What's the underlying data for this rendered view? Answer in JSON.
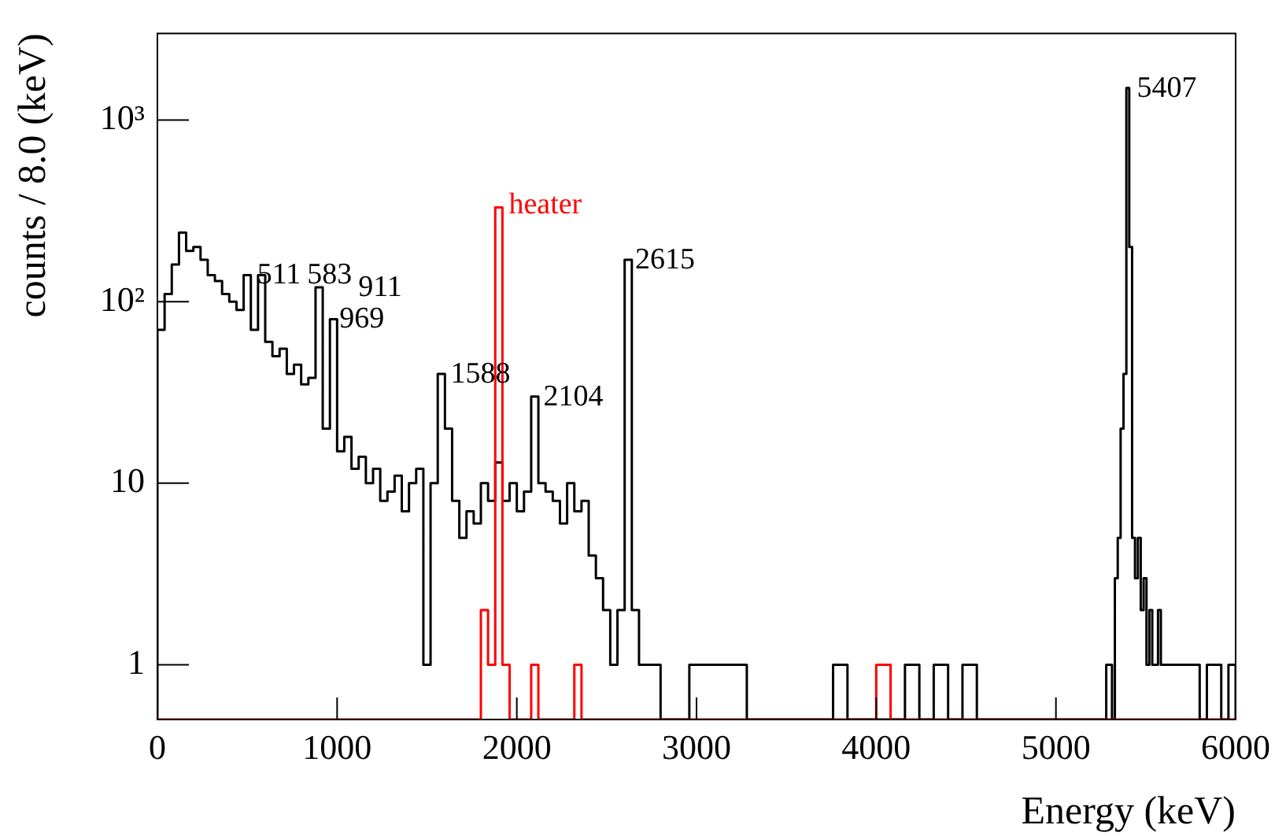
{
  "chart_data": {
    "type": "histogram",
    "xlabel": "Energy (keV)",
    "ylabel": "counts / 8.0 (keV)",
    "bins": [
      0,
      40,
      80,
      120,
      160,
      200,
      240,
      280,
      320,
      360,
      400,
      440,
      480,
      520,
      560,
      600,
      640,
      680,
      720,
      760,
      800,
      840,
      880,
      920,
      960,
      1000,
      1040,
      1080,
      1120,
      1160,
      1200,
      1240,
      1280,
      1320,
      1360,
      1400,
      1440,
      1480,
      1520,
      1560,
      1600,
      1640,
      1680,
      1720,
      1760,
      1800,
      1840,
      1880,
      1920,
      1960,
      2000,
      2040,
      2080,
      2120,
      2160,
      2200,
      2240,
      2280,
      2320,
      2360,
      2400,
      2440,
      2480,
      2520,
      2560,
      2600,
      2640,
      2680,
      2720,
      2760,
      2800,
      2880,
      2960,
      3040,
      3120,
      3200,
      3280,
      3360,
      3440,
      3520,
      3600,
      3680,
      3760,
      3840,
      3920,
      4000,
      4080,
      4160,
      4240,
      4320,
      4400,
      4480,
      4560,
      4640,
      4720,
      4800,
      4880,
      4960,
      5040,
      5120,
      5200,
      5280,
      5296,
      5312,
      5328,
      5344,
      5360,
      5376,
      5392,
      5408,
      5424,
      5440,
      5456,
      5472,
      5488,
      5504,
      5520,
      5536,
      5552,
      5568,
      5584,
      5600,
      5640,
      5680,
      5720,
      5760,
      5800,
      5840,
      5880,
      5920,
      5960,
      6000
    ],
    "series": [
      {
        "color": "#000000",
        "values": [
          70,
          110,
          160,
          240,
          190,
          200,
          170,
          140,
          130,
          110,
          100,
          90,
          140,
          70,
          140,
          60,
          50,
          55,
          40,
          45,
          35,
          38,
          120,
          20,
          80,
          15,
          18,
          12,
          14,
          10,
          12,
          8,
          9,
          11,
          7,
          10,
          12,
          1,
          10,
          40,
          20,
          8,
          5,
          7,
          6,
          10,
          8,
          13,
          8,
          10,
          7,
          9,
          30,
          10,
          9,
          8,
          6,
          10,
          7,
          8,
          4,
          3,
          2,
          1,
          2,
          170,
          2,
          1,
          1,
          1,
          null,
          null,
          1,
          1,
          1,
          1,
          null,
          null,
          null,
          null,
          null,
          null,
          1,
          null,
          null,
          null,
          null,
          1,
          null,
          1,
          null,
          1,
          null,
          null,
          null,
          null,
          null,
          null,
          null,
          null,
          null,
          1,
          1,
          null,
          3,
          5,
          20,
          40,
          1500,
          200,
          5,
          3,
          5,
          2,
          3,
          1,
          2,
          1,
          1,
          2,
          1,
          1,
          1,
          1,
          1,
          1,
          null,
          1,
          1,
          null,
          1
        ]
      },
      {
        "name": "heater",
        "color": "#ff0000",
        "values": [
          null,
          null,
          null,
          null,
          null,
          null,
          null,
          null,
          null,
          null,
          null,
          null,
          null,
          null,
          null,
          null,
          null,
          null,
          null,
          null,
          null,
          null,
          null,
          null,
          null,
          null,
          null,
          null,
          null,
          null,
          null,
          null,
          null,
          null,
          null,
          null,
          null,
          null,
          null,
          null,
          null,
          null,
          null,
          null,
          null,
          2,
          1,
          330,
          1,
          null,
          null,
          null,
          1,
          null,
          null,
          null,
          null,
          null,
          1,
          null,
          null,
          null,
          null,
          null,
          null,
          null,
          null,
          null,
          null,
          null,
          null,
          null,
          null,
          null,
          null,
          null,
          null,
          null,
          null,
          null,
          null,
          null,
          null,
          null,
          null,
          1,
          null,
          null,
          null,
          null,
          null,
          null,
          null,
          null,
          null,
          null,
          null,
          null,
          null,
          null,
          null,
          null,
          null,
          null,
          null,
          null,
          null,
          null,
          null,
          null,
          null,
          null,
          null,
          null,
          null,
          null,
          null,
          null,
          null,
          null,
          null,
          null,
          null,
          null,
          null,
          null,
          null,
          null,
          null,
          null,
          null
        ]
      }
    ],
    "annotations": [
      {
        "text": "511",
        "x": 511,
        "y": 140
      },
      {
        "text": "583",
        "x": 583,
        "y": 140
      },
      {
        "text": "911",
        "x": 911,
        "y": 120
      },
      {
        "text": "969",
        "x": 969,
        "y": 80
      },
      {
        "text": "1588",
        "x": 1588,
        "y": 40
      },
      {
        "text": "2104",
        "x": 2104,
        "y": 30
      },
      {
        "text": "2615",
        "x": 2615,
        "y": 170
      },
      {
        "text": "5407",
        "x": 5407,
        "y": 1500
      }
    ],
    "xlim": [
      0,
      6000
    ],
    "xticks": [
      0,
      1000,
      2000,
      3000,
      4000,
      5000,
      6000
    ],
    "ylim": [
      0.5,
      3000
    ],
    "yticks": [
      1,
      10,
      {
        "value": 100,
        "label": "10²"
      },
      {
        "value": 1000,
        "label": "10³"
      }
    ],
    "log": "y",
    "grid": false,
    "legend": false
  }
}
